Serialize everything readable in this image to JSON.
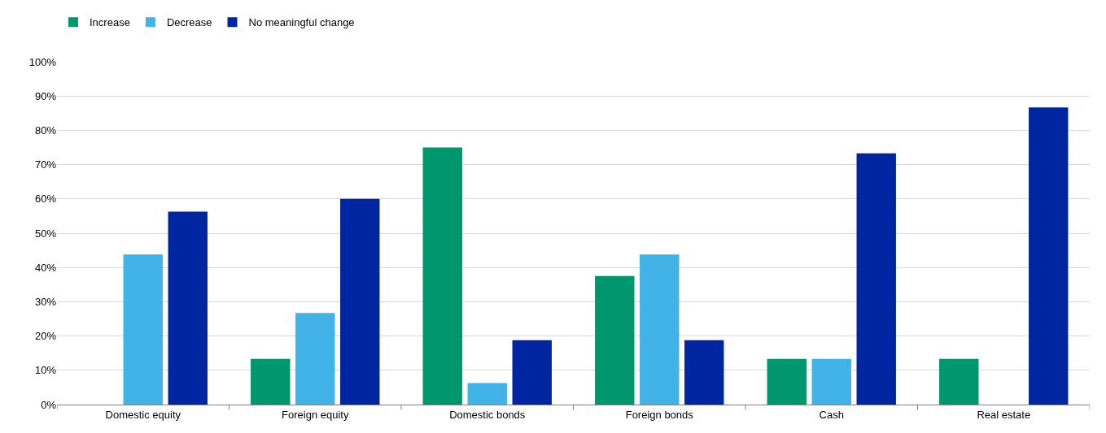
{
  "chart_data": {
    "type": "bar",
    "categories": [
      "Domestic equity",
      "Foreign equity",
      "Domestic bonds",
      "Foreign bonds",
      "Cash",
      "Real estate"
    ],
    "series": [
      {
        "name": "Increase",
        "color": "#00976f",
        "values": [
          0,
          13.3,
          75,
          37.5,
          13.3,
          13.3
        ]
      },
      {
        "name": "Decrease",
        "color": "#41b3e6",
        "values": [
          43.8,
          26.7,
          6.3,
          43.8,
          13.3,
          0
        ]
      },
      {
        "name": "No meaningful change",
        "color": "#0025a0",
        "values": [
          56.3,
          60,
          18.8,
          18.8,
          73.3,
          86.7
        ]
      }
    ],
    "ylim": [
      0,
      100
    ],
    "yticks": [
      {
        "value": 0,
        "label": "0%"
      },
      {
        "value": 10,
        "label": "10%"
      },
      {
        "value": 20,
        "label": "20%"
      },
      {
        "value": 30,
        "label": "30%"
      },
      {
        "value": 40,
        "label": "40%"
      },
      {
        "value": 50,
        "label": "50%"
      },
      {
        "value": 60,
        "label": "60%"
      },
      {
        "value": 70,
        "label": "70%"
      },
      {
        "value": 80,
        "label": "80%"
      },
      {
        "value": 90,
        "label": "90%"
      },
      {
        "value": 100,
        "label": "100%"
      }
    ],
    "grid": "y",
    "legend": "top left"
  }
}
